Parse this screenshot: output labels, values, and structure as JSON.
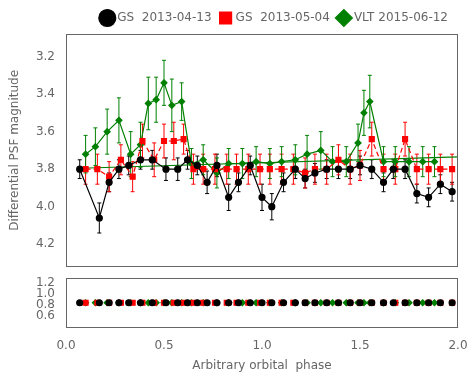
{
  "chart_data": [
    {
      "type": "line",
      "ylabel": "Differential PSF magnitude",
      "xlim": [
        0.0,
        2.0
      ],
      "ylim": [
        4.32,
        3.08
      ],
      "yticks": [
        {
          "value": 3.2,
          "label": "3.2"
        },
        {
          "value": 3.4,
          "label": "3.4"
        },
        {
          "value": 3.6,
          "label": "3.6"
        },
        {
          "value": 3.8,
          "label": "3.8"
        },
        {
          "value": 4.0,
          "label": "4.0"
        },
        {
          "value": 4.2,
          "label": "4.2"
        }
      ],
      "tick_labels": "y",
      "grid": false,
      "legend": "upper right",
      "series": [
        {
          "name": "GS  2013-04-13",
          "color": "#000000",
          "marker": "circle",
          "line_style": "solid",
          "x": [
            0.07,
            0.17,
            0.22,
            0.27,
            0.32,
            0.38,
            0.44,
            0.51,
            0.57,
            0.62,
            0.67,
            0.72,
            0.77,
            0.83,
            0.88,
            0.94,
            1.0,
            1.05,
            1.11,
            1.17,
            1.22,
            1.27,
            1.33,
            1.39,
            1.45,
            1.5,
            1.56,
            1.62,
            1.67,
            1.73,
            1.79,
            1.85,
            1.91,
            1.97
          ],
          "values": [
            3.8,
            4.06,
            3.87,
            3.8,
            3.78,
            3.75,
            3.75,
            3.8,
            3.8,
            3.75,
            3.78,
            3.87,
            3.78,
            3.95,
            3.87,
            3.78,
            3.95,
            4.0,
            3.87,
            3.8,
            3.85,
            3.82,
            3.8,
            3.8,
            3.8,
            3.78,
            3.8,
            3.87,
            3.8,
            3.8,
            3.93,
            3.95,
            3.88,
            3.92
          ],
          "errors": [
            0.05,
            0.08,
            0.05,
            0.05,
            0.05,
            0.05,
            0.05,
            0.06,
            0.06,
            0.05,
            0.05,
            0.06,
            0.06,
            0.07,
            0.05,
            0.05,
            0.07,
            0.07,
            0.05,
            0.05,
            0.05,
            0.05,
            0.05,
            0.05,
            0.05,
            0.05,
            0.05,
            0.05,
            0.05,
            0.05,
            0.05,
            0.05,
            0.05,
            0.05
          ]
        },
        {
          "name": "GS  2013-05-04",
          "color": "#ff0000",
          "marker": "square",
          "line_style": "dashed",
          "x": [
            0.1,
            0.16,
            0.22,
            0.28,
            0.34,
            0.39,
            0.45,
            0.5,
            0.55,
            0.6,
            0.65,
            0.7,
            0.76,
            0.82,
            0.87,
            0.93,
            0.99,
            1.04,
            1.1,
            1.16,
            1.22,
            1.27,
            1.33,
            1.39,
            1.45,
            1.5,
            1.56,
            1.62,
            1.68,
            1.73,
            1.79,
            1.85,
            1.91,
            1.97
          ],
          "values": [
            3.8,
            3.8,
            3.84,
            3.75,
            3.84,
            3.65,
            3.75,
            3.65,
            3.65,
            3.64,
            3.8,
            3.8,
            3.8,
            3.8,
            3.8,
            3.8,
            3.8,
            3.8,
            3.8,
            3.8,
            3.82,
            3.8,
            3.8,
            3.75,
            3.8,
            3.78,
            3.64,
            3.8,
            3.8,
            3.64,
            3.8,
            3.8,
            3.8,
            3.8
          ],
          "errors": [
            0.08,
            0.08,
            0.08,
            0.08,
            0.08,
            0.09,
            0.09,
            0.09,
            0.1,
            0.08,
            0.08,
            0.08,
            0.08,
            0.08,
            0.08,
            0.08,
            0.08,
            0.08,
            0.08,
            0.08,
            0.08,
            0.08,
            0.08,
            0.08,
            0.08,
            0.08,
            0.09,
            0.08,
            0.08,
            0.09,
            0.08,
            0.08,
            0.08,
            0.08
          ]
        },
        {
          "name": "VLT 2015-06-12",
          "color": "#008000",
          "marker": "diamond",
          "line_style": "solid",
          "x": [
            0.1,
            0.15,
            0.21,
            0.27,
            0.33,
            0.38,
            0.42,
            0.46,
            0.5,
            0.54,
            0.59,
            0.64,
            0.7,
            0.77,
            0.83,
            0.9,
            0.97,
            1.04,
            1.1,
            1.17,
            1.23,
            1.3,
            1.36,
            1.43,
            1.49,
            1.52,
            1.55,
            1.62,
            1.68,
            1.75,
            1.82,
            1.88
          ],
          "values": [
            3.72,
            3.68,
            3.6,
            3.54,
            3.72,
            3.67,
            3.45,
            3.43,
            3.34,
            3.46,
            3.44,
            3.77,
            3.75,
            3.82,
            3.77,
            3.77,
            3.76,
            3.77,
            3.76,
            3.75,
            3.72,
            3.7,
            3.76,
            3.76,
            3.66,
            3.5,
            3.44,
            3.76,
            3.76,
            3.76,
            3.76,
            3.76
          ],
          "errors": [
            0.1,
            0.1,
            0.12,
            0.12,
            0.12,
            0.12,
            0.14,
            0.12,
            0.12,
            0.14,
            0.1,
            0.08,
            0.08,
            0.08,
            0.08,
            0.08,
            0.08,
            0.08,
            0.08,
            0.08,
            0.1,
            0.1,
            0.08,
            0.08,
            0.1,
            0.12,
            0.14,
            0.08,
            0.08,
            0.08,
            0.08,
            0.08
          ]
        },
        {
          "color": "#008000",
          "marker": "none",
          "line_style": "solid",
          "x": [
            0.07,
            2.0
          ],
          "values": [
            3.795,
            3.735
          ]
        }
      ]
    },
    {
      "type": "scatter",
      "xlabel": "Arbitrary orbital  phase",
      "xlim": [
        0.0,
        2.0
      ],
      "xticks": [
        {
          "value": 0.0,
          "label": "0.0"
        },
        {
          "value": 0.5,
          "label": "0.5"
        },
        {
          "value": 1.0,
          "label": "1.0"
        },
        {
          "value": 1.5,
          "label": "1.5"
        },
        {
          "value": 2.0,
          "label": "2.0"
        }
      ],
      "ylim": [
        0.38,
        1.28
      ],
      "yticks": [
        {
          "value": 0.6,
          "label": "0.6"
        },
        {
          "value": 0.8,
          "label": "0.8"
        },
        {
          "value": 1.0,
          "label": "1.0"
        },
        {
          "value": 1.2,
          "label": "1.2"
        }
      ],
      "grid": false,
      "series": [
        {
          "color": "#000000",
          "marker": "circle",
          "x": [
            0.07,
            0.17,
            0.22,
            0.27,
            0.32,
            0.38,
            0.44,
            0.51,
            0.57,
            0.62,
            0.67,
            0.72,
            0.77,
            0.83,
            0.88,
            0.94,
            1.0,
            1.05,
            1.11,
            1.17,
            1.22,
            1.27,
            1.33,
            1.39,
            1.45,
            1.5,
            1.56,
            1.62,
            1.67,
            1.73,
            1.79,
            1.85,
            1.91,
            1.97
          ],
          "values": [
            0.83,
            0.83,
            0.83,
            0.83,
            0.83,
            0.83,
            0.83,
            0.83,
            0.83,
            0.83,
            0.83,
            0.83,
            0.83,
            0.83,
            0.83,
            0.83,
            0.83,
            0.83,
            0.83,
            0.83,
            0.83,
            0.83,
            0.83,
            0.83,
            0.83,
            0.83,
            0.83,
            0.83,
            0.83,
            0.83,
            0.83,
            0.83,
            0.83,
            0.83
          ]
        },
        {
          "color": "#ff0000",
          "marker": "square",
          "x": [
            0.1,
            0.16,
            0.22,
            0.28,
            0.34,
            0.39,
            0.45,
            0.5,
            0.55,
            0.6,
            0.65,
            0.7,
            0.76,
            0.82,
            0.87,
            0.93,
            0.99,
            1.04,
            1.1,
            1.16,
            1.22,
            1.27,
            1.33,
            1.39,
            1.45,
            1.5,
            1.56,
            1.62,
            1.68,
            1.73,
            1.79,
            1.85,
            1.91,
            1.97
          ],
          "values": [
            0.83,
            0.83,
            0.83,
            0.83,
            0.83,
            0.83,
            0.83,
            0.83,
            0.83,
            0.83,
            0.83,
            0.83,
            0.83,
            0.83,
            0.83,
            0.83,
            0.83,
            0.83,
            0.83,
            0.83,
            0.83,
            0.83,
            0.83,
            0.83,
            0.83,
            0.83,
            0.83,
            0.83,
            0.83,
            0.83,
            0.83,
            0.83,
            0.83,
            0.83
          ]
        },
        {
          "color": "#008000",
          "marker": "diamond",
          "x": [
            0.1,
            0.15,
            0.21,
            0.27,
            0.33,
            0.38,
            0.42,
            0.46,
            0.5,
            0.54,
            0.59,
            0.64,
            0.7,
            0.77,
            0.83,
            0.9,
            0.97,
            1.04,
            1.1,
            1.17,
            1.23,
            1.3,
            1.36,
            1.43,
            1.49,
            1.52,
            1.55,
            1.62,
            1.68,
            1.75,
            1.82,
            1.88
          ],
          "values": [
            0.83,
            0.83,
            0.83,
            0.83,
            0.83,
            0.83,
            0.83,
            0.83,
            0.83,
            0.83,
            0.83,
            0.83,
            0.83,
            0.83,
            0.83,
            0.83,
            0.83,
            0.83,
            0.83,
            0.83,
            0.83,
            0.83,
            0.83,
            0.83,
            0.83,
            0.83,
            0.83,
            0.83,
            0.83,
            0.83,
            0.83,
            0.83
          ]
        }
      ]
    }
  ]
}
